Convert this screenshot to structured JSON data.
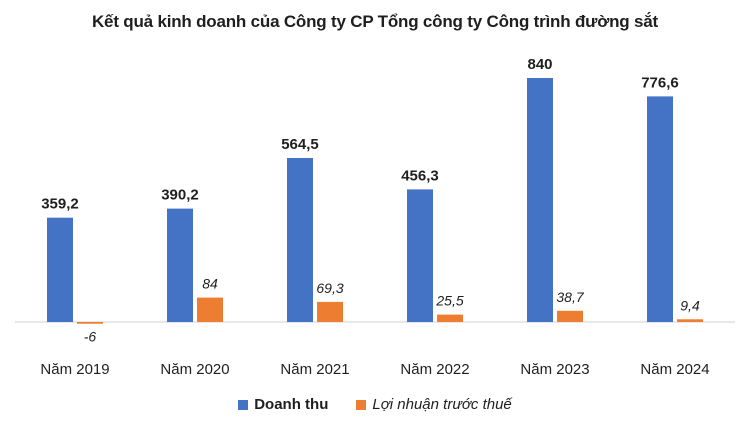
{
  "chart_data": {
    "type": "bar",
    "title": "Kết quả kinh doanh của Công ty CP Tổng công ty Công trình đường sắt",
    "xlabel": "",
    "ylabel": "",
    "categories": [
      "Năm 2019",
      "Năm 2020",
      "Năm 2021",
      "Năm 2022",
      "Năm 2023",
      "Năm 2024"
    ],
    "series": [
      {
        "name": "Doanh thu",
        "color": "#4472C4",
        "values": [
          359.2,
          390.2,
          564.5,
          456.3,
          840,
          776.6
        ],
        "labels": [
          "359,2",
          "390,2",
          "564,5",
          "456,3",
          "840",
          "776,6"
        ]
      },
      {
        "name": "Lợi nhuận trước thuế",
        "color": "#ED7D31",
        "values": [
          -6,
          84,
          69.3,
          25.5,
          38.7,
          9.4
        ],
        "labels": [
          "-6",
          "84",
          "69,3",
          "25,5",
          "38,7",
          "9,4"
        ]
      }
    ],
    "ylim": [
      -40,
      900
    ],
    "grid": false,
    "legend_position": "bottom"
  }
}
